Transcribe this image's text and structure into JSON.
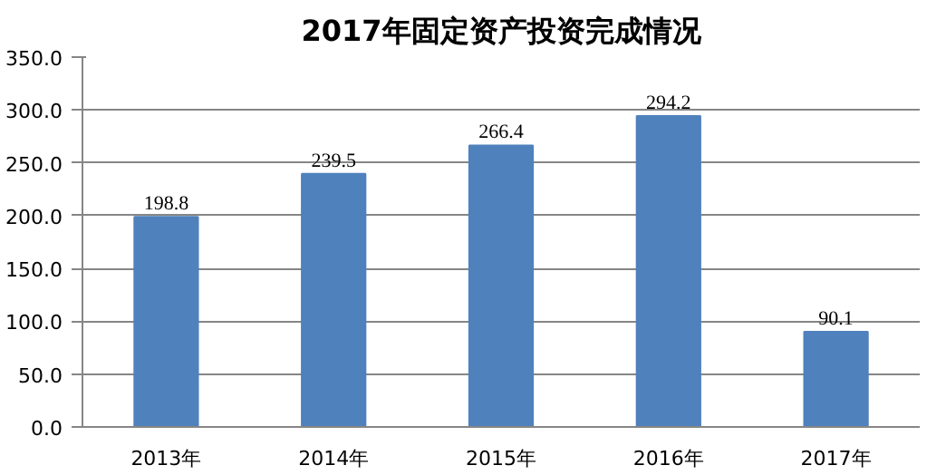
{
  "chart_data": {
    "type": "bar",
    "title": "2017年固定资产投资完成情况",
    "categories": [
      "2013年",
      "2014年",
      "2015年",
      "2016年",
      "2017年"
    ],
    "values": [
      198.8,
      239.5,
      266.4,
      294.2,
      90.1
    ],
    "color": "#4f81bd",
    "ylim": [
      0,
      350
    ],
    "yticks": [
      {
        "value": 0,
        "label": "0.0"
      },
      {
        "value": 50,
        "label": "50.0"
      },
      {
        "value": 100,
        "label": "100.0"
      },
      {
        "value": 150,
        "label": "150.0"
      },
      {
        "value": 200,
        "label": "200.0"
      },
      {
        "value": 250,
        "label": "250.0"
      },
      {
        "value": 300,
        "label": "300.0"
      },
      {
        "value": 350,
        "label": "350.0"
      }
    ],
    "grid": "y",
    "data_labels": true
  }
}
